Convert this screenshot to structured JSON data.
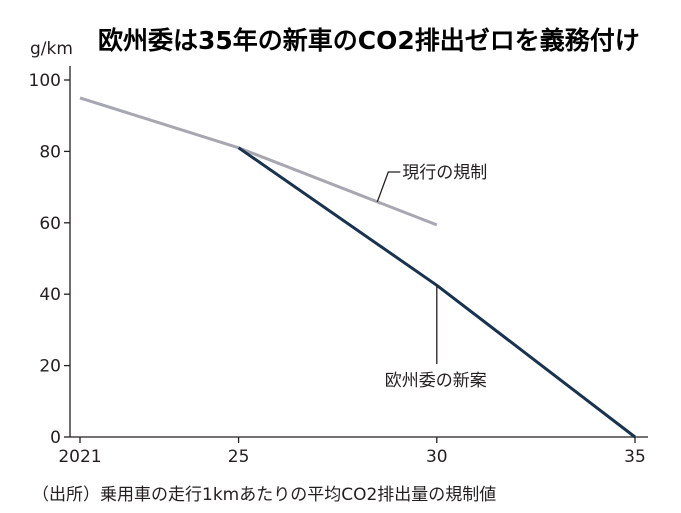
{
  "chart_data": {
    "type": "line",
    "title": "欧州委は35年の新車のCO2排出ゼロを義務付け",
    "ylabel": "g/km",
    "xlabel": "",
    "xlim": [
      2021,
      2035
    ],
    "ylim": [
      0,
      100
    ],
    "x_ticks": [
      2021,
      2025,
      2030,
      2035
    ],
    "x_tick_labels": [
      "2021",
      "25",
      "30",
      "35"
    ],
    "y_ticks": [
      0,
      20,
      40,
      60,
      80,
      100
    ],
    "y_tick_labels": [
      "0",
      "20",
      "40",
      "60",
      "80",
      "100"
    ],
    "grid": false,
    "series": [
      {
        "name": "現行の規制",
        "color": "#a7a7b1",
        "points": [
          [
            2021,
            95
          ],
          [
            2025,
            81
          ],
          [
            2030,
            59.4
          ]
        ]
      },
      {
        "name": "欧州委の新案",
        "color": "#18324f",
        "points": [
          [
            2025,
            81
          ],
          [
            2030,
            42.5
          ],
          [
            2035,
            0
          ]
        ]
      }
    ],
    "source": "（出所）乗用車の走行1kmあたりの平均CO2排出量の規制値"
  }
}
